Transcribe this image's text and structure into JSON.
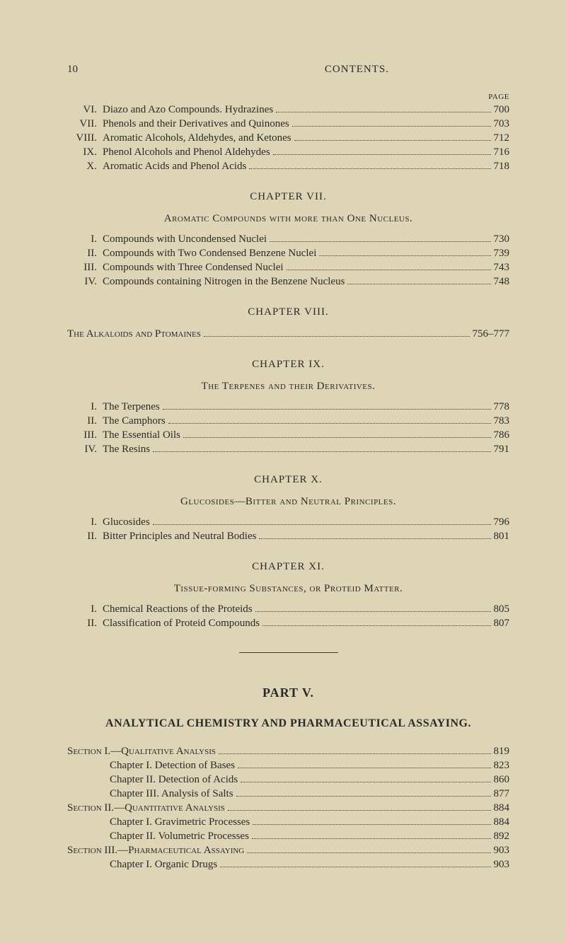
{
  "header": {
    "pageNum": "10",
    "title": "CONTENTS.",
    "pageLabel": "PAGE"
  },
  "topEntries": [
    {
      "num": "VI.",
      "title": "Diazo and Azo Compounds. Hydrazines",
      "page": "700"
    },
    {
      "num": "VII.",
      "title": "Phenols and their Derivatives and Quinones",
      "page": "703"
    },
    {
      "num": "VIII.",
      "title": "Aromatic Alcohols, Aldehydes, and Ketones",
      "page": "712"
    },
    {
      "num": "IX.",
      "title": "Phenol Alcohols and Phenol Aldehydes",
      "page": "716"
    },
    {
      "num": "X.",
      "title": "Aromatic Acids and Phenol Acids",
      "page": "718"
    }
  ],
  "chapter7": {
    "heading": "CHAPTER VII.",
    "subtitle": "Aromatic Compounds with more than One Nucleus.",
    "entries": [
      {
        "num": "I.",
        "title": "Compounds with Uncondensed Nuclei",
        "page": "730"
      },
      {
        "num": "II.",
        "title": "Compounds with Two Condensed Benzene Nuclei",
        "page": "739"
      },
      {
        "num": "III.",
        "title": "Compounds with Three Condensed Nuclei",
        "page": "743"
      },
      {
        "num": "IV.",
        "title": "Compounds containing Nitrogen in the Benzene Nucleus",
        "page": "748"
      }
    ]
  },
  "chapter8": {
    "heading": "CHAPTER VIII.",
    "entry": {
      "title": "The Alkaloids and Ptomaines",
      "page": "756–777"
    }
  },
  "chapter9": {
    "heading": "CHAPTER IX.",
    "subtitle": "The Terpenes and their Derivatives.",
    "entries": [
      {
        "num": "I.",
        "title": "The Terpenes",
        "page": "778"
      },
      {
        "num": "II.",
        "title": "The Camphors",
        "page": "783"
      },
      {
        "num": "III.",
        "title": "The Essential Oils",
        "page": "786"
      },
      {
        "num": "IV.",
        "title": "The Resins",
        "page": "791"
      }
    ]
  },
  "chapter10": {
    "heading": "CHAPTER X.",
    "subtitle": "Glucosides—Bitter and Neutral Principles.",
    "entries": [
      {
        "num": "I.",
        "title": "Glucosides",
        "page": "796"
      },
      {
        "num": "II.",
        "title": "Bitter Principles and Neutral Bodies",
        "page": "801"
      }
    ]
  },
  "chapter11": {
    "heading": "CHAPTER XI.",
    "subtitle": "Tissue-forming Substances, or Proteid Matter.",
    "entries": [
      {
        "num": "I.",
        "title": "Chemical Reactions of the Proteids",
        "page": "805"
      },
      {
        "num": "II.",
        "title": "Classification of Proteid Compounds",
        "page": "807"
      }
    ]
  },
  "part5": {
    "heading": "PART V.",
    "sectionHeading": "ANALYTICAL CHEMISTRY AND PHARMACEUTICAL ASSAYING.",
    "entries": [
      {
        "type": "section",
        "title": "Section I.—Qualitative Analysis",
        "page": "819"
      },
      {
        "type": "indent",
        "title": "Chapter I. Detection of Bases",
        "page": "823"
      },
      {
        "type": "indent",
        "title": "Chapter II. Detection of Acids",
        "page": "860"
      },
      {
        "type": "indent",
        "title": "Chapter III. Analysis of Salts",
        "page": "877"
      },
      {
        "type": "section",
        "title": "Section II.—Quantitative Analysis",
        "page": "884"
      },
      {
        "type": "indent",
        "title": "Chapter I. Gravimetric Processes",
        "page": "884"
      },
      {
        "type": "indent",
        "title": "Chapter II. Volumetric Processes",
        "page": "892"
      },
      {
        "type": "section",
        "title": "Section III.—Pharmaceutical Assaying",
        "page": "903"
      },
      {
        "type": "indent",
        "title": "Chapter I. Organic Drugs",
        "page": "903"
      }
    ]
  }
}
